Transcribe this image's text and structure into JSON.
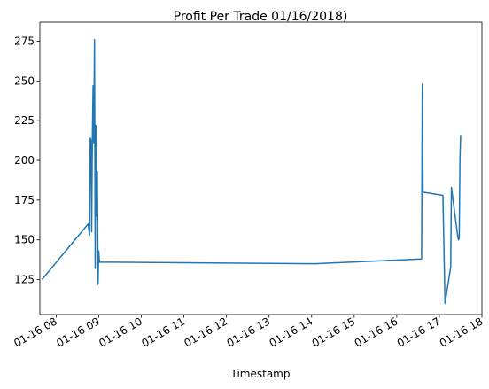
{
  "chart_data": {
    "type": "line",
    "title": "Profit Per Trade 01/16/2018)",
    "xlabel": "Timestamp",
    "ylabel": "",
    "x_range": [
      "2018-01-16 07:37",
      "2018-01-16 18:00"
    ],
    "y_range": [
      103,
      287
    ],
    "grid": false,
    "legend": "none",
    "line_color": "#1f77b4",
    "y_ticks": [
      125,
      150,
      175,
      200,
      225,
      250,
      275
    ],
    "x_ticks": [
      {
        "t": "2018-01-16 08:00",
        "label": "01-16 08"
      },
      {
        "t": "2018-01-16 09:00",
        "label": "01-16 09"
      },
      {
        "t": "2018-01-16 10:00",
        "label": "01-16 10"
      },
      {
        "t": "2018-01-16 11:00",
        "label": "01-16 11"
      },
      {
        "t": "2018-01-16 12:00",
        "label": "01-16 12"
      },
      {
        "t": "2018-01-16 13:00",
        "label": "01-16 13"
      },
      {
        "t": "2018-01-16 14:00",
        "label": "01-16 14"
      },
      {
        "t": "2018-01-16 15:00",
        "label": "01-16 15"
      },
      {
        "t": "2018-01-16 16:00",
        "label": "01-16 16"
      },
      {
        "t": "2018-01-16 17:00",
        "label": "01-16 17"
      },
      {
        "t": "2018-01-16 18:00",
        "label": "01-16 18"
      }
    ],
    "points": [
      {
        "t": "2018-01-16 07:40",
        "y": 125
      },
      {
        "t": "2018-01-16 08:45",
        "y": 160
      },
      {
        "t": "2018-01-16 08:47",
        "y": 153
      },
      {
        "t": "2018-01-16 08:48",
        "y": 214
      },
      {
        "t": "2018-01-16 08:49",
        "y": 213
      },
      {
        "t": "2018-01-16 08:50",
        "y": 155
      },
      {
        "t": "2018-01-16 08:51",
        "y": 214
      },
      {
        "t": "2018-01-16 08:52",
        "y": 247
      },
      {
        "t": "2018-01-16 08:53",
        "y": 211
      },
      {
        "t": "2018-01-16 08:54",
        "y": 276
      },
      {
        "t": "2018-01-16 08:55",
        "y": 132
      },
      {
        "t": "2018-01-16 08:56",
        "y": 222
      },
      {
        "t": "2018-01-16 08:57",
        "y": 165
      },
      {
        "t": "2018-01-16 08:58",
        "y": 193
      },
      {
        "t": "2018-01-16 08:59",
        "y": 122
      },
      {
        "t": "2018-01-16 09:00",
        "y": 143
      },
      {
        "t": "2018-01-16 09:01",
        "y": 136
      },
      {
        "t": "2018-01-16 14:05",
        "y": 135
      },
      {
        "t": "2018-01-16 16:35",
        "y": 138
      },
      {
        "t": "2018-01-16 16:36",
        "y": 248
      },
      {
        "t": "2018-01-16 16:37",
        "y": 180
      },
      {
        "t": "2018-01-16 17:05",
        "y": 178
      },
      {
        "t": "2018-01-16 17:08",
        "y": 110
      },
      {
        "t": "2018-01-16 17:16",
        "y": 133
      },
      {
        "t": "2018-01-16 17:17",
        "y": 183
      },
      {
        "t": "2018-01-16 17:26",
        "y": 152
      },
      {
        "t": "2018-01-16 17:27",
        "y": 150
      },
      {
        "t": "2018-01-16 17:28",
        "y": 151
      },
      {
        "t": "2018-01-16 17:29",
        "y": 200
      },
      {
        "t": "2018-01-16 17:30",
        "y": 216
      }
    ]
  }
}
